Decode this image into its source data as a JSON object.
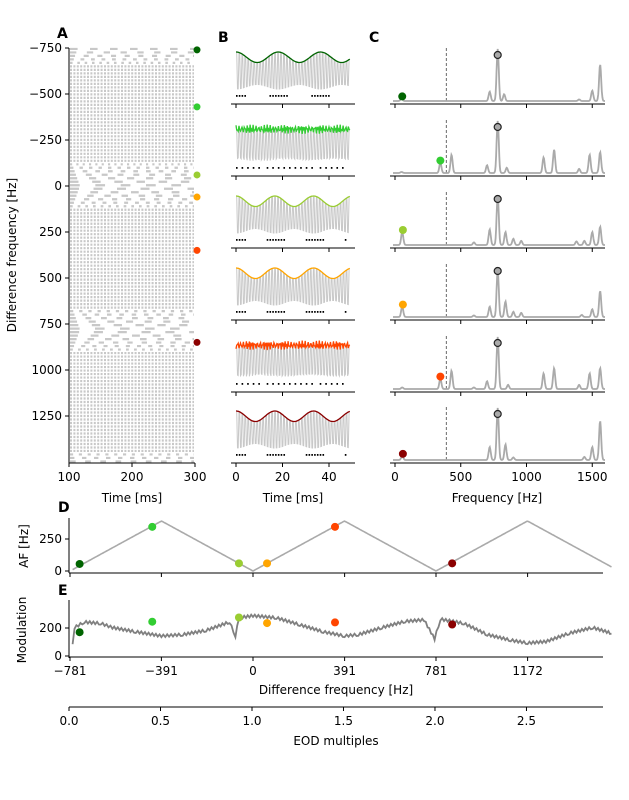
{
  "colors": [
    "#006400",
    "#32cd32",
    "#9acd32",
    "#ffa500",
    "#ff4500",
    "#8b0000"
  ],
  "cells_df": [
    -740,
    -430,
    -60,
    60,
    350,
    850
  ],
  "cells_af": [
    55,
    345,
    60,
    60,
    345,
    60
  ],
  "cells_mod": [
    170,
    245,
    275,
    235,
    240,
    225
  ],
  "eod_hz": 781,
  "chart_data": [
    {
      "panel": "A",
      "type": "raster",
      "xlabel": "Time [ms]",
      "ylabel": "Difference frequency [Hz]",
      "xticks": [
        "100",
        "200",
        "300"
      ],
      "xtick_values": [
        100,
        200,
        300
      ],
      "xlim": [
        100,
        300
      ],
      "yticks": [
        "−750",
        "−500",
        "−250",
        "0",
        "250",
        "500",
        "750",
        "1000",
        "1250"
      ],
      "ytick_values": [
        -750,
        -500,
        -250,
        0,
        250,
        500,
        750,
        1000,
        1250
      ],
      "ylim": [
        -770,
        1500
      ]
    },
    {
      "panel": "B",
      "type": "line",
      "xlabel": "Time [ms]",
      "xticks": [
        "0",
        "20",
        "40"
      ],
      "xtick_values": [
        0,
        20,
        40
      ],
      "xlim": [
        0,
        50
      ]
    },
    {
      "panel": "C",
      "type": "line",
      "xlabel": "Frequency [Hz]",
      "xticks": [
        "0",
        "500",
        "1000",
        "1500"
      ],
      "xtick_values": [
        0,
        500,
        1000,
        1500
      ],
      "xlim": [
        -20,
        1600
      ],
      "dashed_line_hz": 390,
      "eod_peak_hz": 781,
      "spectra": [
        [
          [
            50,
            0.05
          ],
          [
            720,
            0.18
          ],
          [
            781,
            1.0
          ],
          [
            830,
            0.13
          ],
          [
            1400,
            0.03
          ],
          [
            1500,
            0.2
          ],
          [
            1560,
            0.7
          ]
        ],
        [
          [
            50,
            0.02
          ],
          [
            345,
            0.2
          ],
          [
            430,
            0.35
          ],
          [
            700,
            0.15
          ],
          [
            781,
            1.0
          ],
          [
            850,
            0.1
          ],
          [
            1130,
            0.3
          ],
          [
            1210,
            0.45
          ],
          [
            1400,
            0.08
          ],
          [
            1480,
            0.35
          ],
          [
            1560,
            0.4
          ]
        ],
        [
          [
            55,
            0.25
          ],
          [
            600,
            0.05
          ],
          [
            720,
            0.3
          ],
          [
            781,
            0.95
          ],
          [
            840,
            0.25
          ],
          [
            900,
            0.12
          ],
          [
            960,
            0.08
          ],
          [
            1380,
            0.07
          ],
          [
            1440,
            0.08
          ],
          [
            1500,
            0.25
          ],
          [
            1560,
            0.35
          ]
        ],
        [
          [
            55,
            0.2
          ],
          [
            600,
            0.03
          ],
          [
            720,
            0.2
          ],
          [
            781,
            0.9
          ],
          [
            840,
            0.3
          ],
          [
            900,
            0.1
          ],
          [
            960,
            0.08
          ],
          [
            1420,
            0.04
          ],
          [
            1500,
            0.15
          ],
          [
            1560,
            0.5
          ]
        ],
        [
          [
            55,
            0.03
          ],
          [
            345,
            0.2
          ],
          [
            430,
            0.35
          ],
          [
            600,
            0.03
          ],
          [
            700,
            0.15
          ],
          [
            781,
            1.0
          ],
          [
            860,
            0.08
          ],
          [
            1130,
            0.3
          ],
          [
            1210,
            0.4
          ],
          [
            1400,
            0.08
          ],
          [
            1480,
            0.3
          ],
          [
            1560,
            0.4
          ]
        ],
        [
          [
            55,
            0.08
          ],
          [
            720,
            0.25
          ],
          [
            781,
            1.0
          ],
          [
            840,
            0.3
          ],
          [
            900,
            0.05
          ],
          [
            1440,
            0.06
          ],
          [
            1500,
            0.25
          ],
          [
            1560,
            0.75
          ]
        ]
      ]
    },
    {
      "panel": "D",
      "type": "line",
      "ylabel": "AF [Hz]",
      "yticks": [
        "0",
        "250"
      ],
      "ytick_values": [
        0,
        250
      ],
      "ylim": [
        0,
        390
      ]
    },
    {
      "panel": "E",
      "type": "line",
      "ylabel": "Modulation",
      "xlabel": "Difference frequency [Hz]",
      "yticks": [
        "0",
        "200"
      ],
      "ytick_values": [
        0,
        200
      ],
      "xticks": [
        "−781",
        "−391",
        "0",
        "391",
        "781",
        "1172"
      ],
      "xtick_values": [
        -781,
        -391,
        0,
        391,
        781,
        1172
      ],
      "xlim": [
        -781,
        1530
      ],
      "points": [
        [
          -770,
          90
        ],
        [
          -762,
          200
        ],
        [
          -720,
          240
        ],
        [
          -650,
          230
        ],
        [
          -600,
          200
        ],
        [
          -500,
          170
        ],
        [
          -391,
          140
        ],
        [
          -300,
          150
        ],
        [
          -200,
          180
        ],
        [
          -100,
          240
        ],
        [
          -75,
          140
        ],
        [
          -60,
          270
        ],
        [
          0,
          285
        ],
        [
          100,
          270
        ],
        [
          200,
          220
        ],
        [
          300,
          170
        ],
        [
          391,
          140
        ],
        [
          450,
          150
        ],
        [
          550,
          200
        ],
        [
          650,
          245
        ],
        [
          730,
          255
        ],
        [
          775,
          120
        ],
        [
          800,
          260
        ],
        [
          900,
          230
        ],
        [
          1000,
          150
        ],
        [
          1100,
          110
        ],
        [
          1172,
          90
        ],
        [
          1250,
          100
        ],
        [
          1350,
          160
        ],
        [
          1450,
          200
        ],
        [
          1510,
          170
        ],
        [
          1530,
          160
        ]
      ]
    },
    {
      "panel": "E2",
      "type": "axis",
      "xlabel": "EOD multiples",
      "xticks": [
        "0.0",
        "0.5",
        "1.0",
        "1.5",
        "2.0",
        "2.5"
      ],
      "xtick_values": [
        0,
        0.5,
        1.0,
        1.5,
        2.0,
        2.5
      ]
    }
  ],
  "panel_labels": [
    "A",
    "B",
    "C",
    "D",
    "E"
  ]
}
